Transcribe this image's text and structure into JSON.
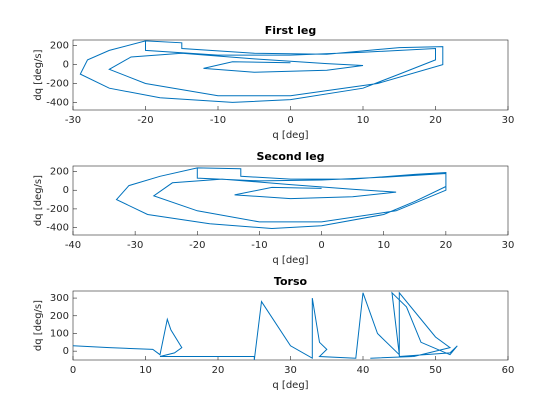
{
  "chart_data": [
    {
      "type": "line",
      "title": "First leg",
      "xlabel": "q [deg]",
      "ylabel": "dq [deg/s]",
      "xlim": [
        -30,
        30
      ],
      "xticks": [
        -30,
        -20,
        -10,
        0,
        10,
        20,
        30
      ],
      "ylim": [
        -480,
        260
      ],
      "yticks": [
        -400,
        -200,
        0,
        200
      ],
      "x": [
        -20,
        -20,
        -10,
        0,
        10,
        20,
        20,
        20,
        15,
        10,
        0,
        -8,
        -18,
        -25,
        -29,
        -28,
        -25,
        -20,
        -15,
        -15,
        -5,
        5,
        15,
        21,
        21,
        12,
        0,
        -10,
        -20,
        -25,
        -22,
        -15,
        -5,
        5,
        10,
        5,
        -5,
        -12,
        -8,
        0
      ],
      "series": [
        {
          "name": "First leg",
          "color": "#0072bd",
          "values": [
            250,
            150,
            100,
            100,
            130,
            170,
            100,
            50,
            -100,
            -250,
            -370,
            -400,
            -350,
            -250,
            -100,
            50,
            150,
            250,
            230,
            170,
            120,
            110,
            180,
            190,
            0,
            -200,
            -330,
            -330,
            -200,
            -50,
            80,
            120,
            60,
            10,
            -10,
            -60,
            -80,
            -40,
            30,
            20
          ]
        }
      ]
    },
    {
      "type": "line",
      "title": "Second leg",
      "xlabel": "q [deg]",
      "ylabel": "dq [deg/s]",
      "xlim": [
        -40,
        30
      ],
      "xticks": [
        -40,
        -30,
        -20,
        -10,
        0,
        10,
        20,
        30
      ],
      "ylim": [
        -480,
        260
      ],
      "yticks": [
        -400,
        -200,
        0,
        200
      ],
      "x": [
        -20,
        -20,
        -10,
        0,
        10,
        20,
        20,
        20,
        15,
        10,
        0,
        -8,
        -18,
        -28,
        -33,
        -31,
        -26,
        -20,
        -13,
        -13,
        -5,
        5,
        15,
        20,
        20,
        12,
        0,
        -10,
        -20,
        -27,
        -24,
        -16,
        -5,
        5,
        12,
        5,
        -5,
        -14,
        -8,
        0
      ],
      "series": [
        {
          "name": "Second leg",
          "color": "#0072bd",
          "values": [
            240,
            130,
            100,
            110,
            140,
            180,
            100,
            40,
            -120,
            -260,
            -380,
            -410,
            -360,
            -260,
            -100,
            50,
            150,
            240,
            230,
            150,
            120,
            120,
            170,
            190,
            0,
            -220,
            -340,
            -340,
            -220,
            -60,
            80,
            120,
            60,
            10,
            -20,
            -70,
            -90,
            -50,
            30,
            20
          ]
        }
      ]
    },
    {
      "type": "line",
      "title": "Torso",
      "xlabel": "q [deg]",
      "ylabel": "dq [deg/s]",
      "xlim": [
        0,
        60
      ],
      "xticks": [
        0,
        10,
        20,
        30,
        40,
        50,
        60
      ],
      "ylim": [
        -50,
        340
      ],
      "yticks": [
        0,
        100,
        200,
        300
      ],
      "x": [
        0,
        5,
        11,
        12,
        13,
        13.5,
        15,
        14,
        12,
        25,
        25,
        26,
        30,
        33,
        33,
        34,
        35,
        34,
        39,
        40,
        42,
        45,
        44,
        46,
        48,
        52,
        53,
        52,
        45,
        45,
        50,
        52,
        47,
        41
      ],
      "series": [
        {
          "name": "Torso",
          "color": "#0072bd",
          "values": [
            30,
            20,
            10,
            -20,
            180,
            120,
            20,
            -10,
            -30,
            -30,
            -50,
            280,
            30,
            -40,
            300,
            50,
            10,
            -30,
            -40,
            330,
            100,
            -20,
            330,
            250,
            50,
            -20,
            30,
            -10,
            -30,
            330,
            80,
            20,
            -30,
            -40
          ]
        }
      ]
    }
  ]
}
